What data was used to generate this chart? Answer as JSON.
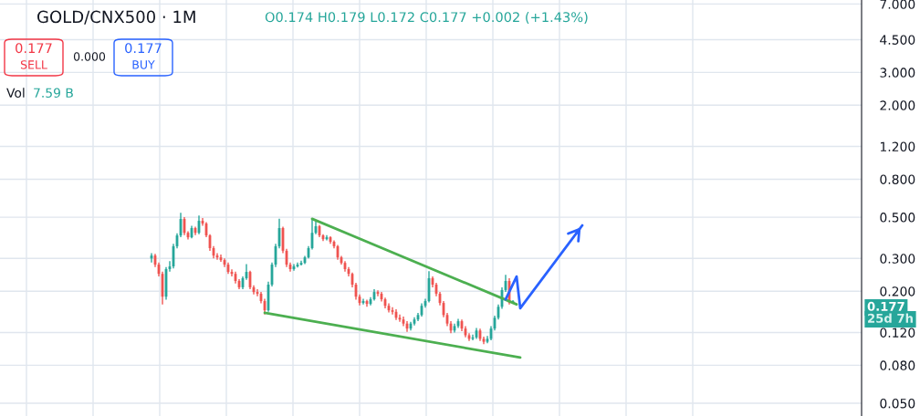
{
  "chart_data": {
    "type": "candlestick",
    "title": "GOLD/CNX500 · 1M",
    "categories": [
      null,
      null,
      null,
      null,
      null,
      null,
      null,
      null,
      null,
      null,
      null,
      null,
      null,
      null,
      null,
      null,
      null,
      null,
      null,
      null,
      null,
      null,
      null,
      null,
      null,
      null,
      null,
      null,
      null,
      null,
      null,
      null,
      null,
      null,
      null,
      null,
      null,
      null,
      null,
      null,
      null,
      null,
      null,
      null,
      null,
      null,
      null,
      null,
      null,
      null,
      null,
      null,
      null,
      null,
      null,
      null,
      null,
      null,
      null,
      null,
      null,
      null,
      null,
      null,
      null,
      null,
      null,
      null,
      null,
      null,
      null,
      null,
      null,
      null,
      null,
      null,
      null,
      null,
      null,
      null,
      null,
      null,
      null,
      null,
      null,
      null,
      null,
      null,
      null,
      null,
      null,
      null,
      null,
      null,
      null,
      null,
      null,
      null,
      null,
      null,
      null,
      null,
      null,
      null,
      null,
      null,
      null,
      null,
      null,
      null,
      null,
      null,
      null,
      null,
      null,
      null,
      null,
      null,
      null,
      null,
      null,
      null,
      null,
      null,
      null,
      null,
      null,
      null,
      null,
      null,
      null,
      null,
      null,
      null,
      null,
      null,
      null,
      null,
      null,
      null,
      null,
      null,
      null,
      null,
      null,
      null,
      null,
      null,
      null,
      null,
      null,
      null,
      null,
      null,
      null,
      null,
      null,
      null,
      null,
      null,
      null,
      null,
      null,
      null,
      null,
      null,
      null,
      null,
      null,
      null,
      null,
      null,
      null,
      null,
      null,
      null,
      null,
      null,
      null,
      null,
      null,
      null,
      null,
      null,
      null,
      null,
      null,
      null,
      null,
      null,
      null,
      null,
      null,
      null,
      null,
      null,
      null,
      null,
      null,
      null,
      null,
      null,
      null,
      null,
      null,
      null,
      null,
      null,
      null,
      null,
      null,
      null,
      null,
      null,
      null,
      null,
      null,
      null,
      null,
      null,
      null,
      null,
      null,
      null,
      null,
      null,
      null,
      null,
      null,
      null,
      null,
      null,
      null,
      null,
      null,
      null
    ],
    "ohlc": [
      null,
      null,
      null,
      null,
      null,
      null,
      null,
      null,
      null,
      null,
      null,
      null,
      null,
      null,
      null,
      null,
      null,
      null,
      null,
      null,
      null,
      null,
      null,
      null,
      null,
      null,
      null,
      null,
      null,
      null,
      null,
      null,
      null,
      null,
      null,
      null,
      null,
      null,
      null,
      null,
      null,
      [
        0.3,
        0.32,
        0.285,
        0.311
      ],
      [
        0.311,
        0.318,
        0.27,
        0.278
      ],
      [
        0.278,
        0.285,
        0.24,
        0.248
      ],
      [
        0.248,
        0.255,
        0.17,
        0.187
      ],
      [
        0.187,
        0.27,
        0.18,
        0.263
      ],
      [
        0.263,
        0.29,
        0.255,
        0.272
      ],
      [
        0.272,
        0.36,
        0.265,
        0.349
      ],
      [
        0.349,
        0.41,
        0.34,
        0.399
      ],
      [
        0.399,
        0.528,
        0.39,
        0.489
      ],
      [
        0.489,
        0.5,
        0.4,
        0.412
      ],
      [
        0.412,
        0.42,
        0.38,
        0.39
      ],
      [
        0.39,
        0.45,
        0.385,
        0.437
      ],
      [
        0.437,
        0.445,
        0.4,
        0.412
      ],
      [
        0.412,
        0.51,
        0.405,
        0.478
      ],
      [
        0.478,
        0.495,
        0.45,
        0.462
      ],
      [
        0.462,
        0.47,
        0.39,
        0.399
      ],
      [
        0.399,
        0.405,
        0.33,
        0.341
      ],
      [
        0.341,
        0.35,
        0.3,
        0.311
      ],
      [
        0.311,
        0.32,
        0.295,
        0.304
      ],
      [
        0.304,
        0.315,
        0.288,
        0.294
      ],
      [
        0.294,
        0.3,
        0.27,
        0.278
      ],
      [
        0.278,
        0.285,
        0.248,
        0.254
      ],
      [
        0.254,
        0.262,
        0.24,
        0.248
      ],
      [
        0.248,
        0.255,
        0.22,
        0.227
      ],
      [
        0.227,
        0.232,
        0.205,
        0.21
      ],
      [
        0.21,
        0.24,
        0.205,
        0.235
      ],
      [
        0.235,
        0.28,
        0.23,
        0.254
      ],
      [
        0.254,
        0.258,
        0.205,
        0.21
      ],
      [
        0.21,
        0.215,
        0.192,
        0.198
      ],
      [
        0.198,
        0.205,
        0.188,
        0.194
      ],
      [
        0.194,
        0.198,
        0.172,
        0.177
      ],
      [
        0.177,
        0.182,
        0.15,
        0.158
      ],
      [
        0.158,
        0.225,
        0.155,
        0.217
      ],
      [
        0.217,
        0.285,
        0.212,
        0.278
      ],
      [
        0.278,
        0.36,
        0.27,
        0.349
      ],
      [
        0.349,
        0.49,
        0.34,
        0.437
      ],
      [
        0.437,
        0.445,
        0.32,
        0.33
      ],
      [
        0.33,
        0.338,
        0.27,
        0.278
      ],
      [
        0.278,
        0.285,
        0.255,
        0.263
      ],
      [
        0.263,
        0.28,
        0.258,
        0.272
      ],
      [
        0.272,
        0.285,
        0.268,
        0.278
      ],
      [
        0.278,
        0.292,
        0.275,
        0.284
      ],
      [
        0.284,
        0.31,
        0.28,
        0.304
      ],
      [
        0.304,
        0.35,
        0.3,
        0.341
      ],
      [
        0.341,
        0.489,
        0.335,
        0.412
      ],
      [
        0.412,
        0.475,
        0.405,
        0.447
      ],
      [
        0.447,
        0.455,
        0.39,
        0.399
      ],
      [
        0.399,
        0.405,
        0.372,
        0.381
      ],
      [
        0.381,
        0.4,
        0.375,
        0.39
      ],
      [
        0.39,
        0.395,
        0.36,
        0.369
      ],
      [
        0.369,
        0.375,
        0.34,
        0.349
      ],
      [
        0.349,
        0.355,
        0.295,
        0.304
      ],
      [
        0.304,
        0.31,
        0.278,
        0.284
      ],
      [
        0.284,
        0.29,
        0.255,
        0.263
      ],
      [
        0.263,
        0.27,
        0.24,
        0.248
      ],
      [
        0.248,
        0.252,
        0.21,
        0.217
      ],
      [
        0.217,
        0.222,
        0.18,
        0.187
      ],
      [
        0.187,
        0.192,
        0.168,
        0.173
      ],
      [
        0.173,
        0.182,
        0.17,
        0.177
      ],
      [
        0.177,
        0.18,
        0.165,
        0.171
      ],
      [
        0.171,
        0.186,
        0.168,
        0.181
      ],
      [
        0.181,
        0.205,
        0.178,
        0.198
      ],
      [
        0.198,
        0.202,
        0.188,
        0.194
      ],
      [
        0.194,
        0.198,
        0.176,
        0.181
      ],
      [
        0.181,
        0.185,
        0.162,
        0.167
      ],
      [
        0.167,
        0.172,
        0.154,
        0.158
      ],
      [
        0.158,
        0.164,
        0.15,
        0.155
      ],
      [
        0.155,
        0.16,
        0.14,
        0.144
      ],
      [
        0.144,
        0.15,
        0.137,
        0.141
      ],
      [
        0.141,
        0.146,
        0.13,
        0.134
      ],
      [
        0.134,
        0.138,
        0.121,
        0.126
      ],
      [
        0.126,
        0.137,
        0.123,
        0.134
      ],
      [
        0.134,
        0.145,
        0.131,
        0.141
      ],
      [
        0.141,
        0.153,
        0.138,
        0.149
      ],
      [
        0.149,
        0.172,
        0.146,
        0.167
      ],
      [
        0.167,
        0.182,
        0.163,
        0.177
      ],
      [
        0.177,
        0.256,
        0.174,
        0.235
      ],
      [
        0.235,
        0.24,
        0.21,
        0.217
      ],
      [
        0.217,
        0.222,
        0.188,
        0.194
      ],
      [
        0.194,
        0.198,
        0.168,
        0.173
      ],
      [
        0.173,
        0.177,
        0.145,
        0.149
      ],
      [
        0.149,
        0.153,
        0.13,
        0.134
      ],
      [
        0.134,
        0.138,
        0.119,
        0.123
      ],
      [
        0.123,
        0.134,
        0.12,
        0.13
      ],
      [
        0.13,
        0.142,
        0.127,
        0.138
      ],
      [
        0.138,
        0.141,
        0.122,
        0.126
      ],
      [
        0.126,
        0.13,
        0.113,
        0.116
      ],
      [
        0.116,
        0.119,
        0.108,
        0.111
      ],
      [
        0.111,
        0.117,
        0.109,
        0.113
      ],
      [
        0.113,
        0.127,
        0.111,
        0.123
      ],
      [
        0.123,
        0.126,
        0.108,
        0.111
      ],
      [
        0.111,
        0.114,
        0.104,
        0.107
      ],
      [
        0.107,
        0.115,
        0.105,
        0.111
      ],
      [
        0.111,
        0.13,
        0.109,
        0.126
      ],
      [
        0.126,
        0.148,
        0.123,
        0.144
      ],
      [
        0.144,
        0.17,
        0.141,
        0.165
      ],
      [
        0.165,
        0.21,
        0.161,
        0.203
      ],
      [
        0.203,
        0.245,
        0.198,
        0.227
      ],
      [
        0.227,
        0.235,
        0.17,
        0.174
      ],
      [
        0.174,
        0.179,
        0.172,
        0.177
      ],
      null,
      null,
      null,
      null,
      null,
      null,
      null,
      null,
      null,
      null,
      null,
      null,
      null,
      null,
      null,
      null,
      null,
      null,
      null,
      null,
      null,
      null,
      null,
      null,
      null,
      null,
      null,
      null,
      null,
      null,
      null,
      null,
      null,
      null,
      null,
      null,
      null,
      null,
      null,
      null,
      null,
      null,
      null,
      null,
      null,
      null,
      null,
      null,
      null,
      null,
      null,
      null,
      null,
      null,
      null,
      null,
      null,
      null,
      null,
      null,
      null,
      null,
      null,
      null,
      null,
      null,
      null,
      null,
      null,
      null,
      null,
      null,
      null,
      null,
      null,
      null,
      null,
      null,
      null,
      null,
      null,
      null,
      null,
      null,
      null,
      null,
      null,
      null,
      null,
      null,
      null,
      null,
      null,
      null,
      null
    ],
    "series": [
      {
        "type": "line",
        "color": "#4caf50",
        "values": [
          null,
          null,
          null,
          null,
          null,
          null,
          null,
          null,
          null,
          null,
          null,
          null,
          null,
          null,
          null,
          null,
          null,
          null,
          null,
          null,
          null,
          null,
          null,
          null,
          null,
          null,
          null,
          null,
          null,
          null,
          null,
          null,
          null,
          null,
          null,
          null,
          null,
          null,
          null,
          null,
          null,
          null,
          null,
          null,
          null,
          null,
          null,
          null,
          null,
          null,
          null,
          null,
          null,
          null,
          null,
          null,
          null,
          null,
          null,
          null,
          null,
          null,
          null,
          null,
          null,
          null,
          null,
          null,
          null,
          null,
          null,
          null,
          null,
          null,
          null,
          null,
          null,
          null,
          null,
          null,
          null,
          null,
          null,
          null,
          null,
          0.49,
          null,
          null,
          null,
          null,
          null,
          null,
          null,
          null,
          null,
          null,
          null,
          null,
          null,
          null,
          null,
          null,
          null,
          null,
          null,
          null,
          null,
          null,
          null,
          null,
          null,
          null,
          null,
          null,
          null,
          null,
          null,
          null,
          null,
          null,
          null,
          null,
          null,
          null,
          null,
          null,
          null,
          null,
          null,
          null,
          null,
          null,
          null,
          null,
          null,
          null,
          null,
          null,
          null,
          null,
          null,
          0.17,
          null,
          null,
          null,
          null,
          null,
          null,
          null,
          null,
          null,
          null,
          null,
          null,
          null,
          null,
          null,
          null,
          null,
          null,
          null,
          null,
          null,
          null,
          null,
          null,
          null,
          null,
          null,
          null,
          null,
          null,
          null,
          null,
          null,
          null,
          null,
          null,
          null,
          null,
          null,
          null,
          null,
          null,
          null,
          null,
          null,
          null,
          null,
          null,
          null,
          null,
          null,
          null,
          null,
          null,
          null,
          null,
          null,
          null,
          null,
          null,
          null,
          null,
          null,
          null,
          null,
          null,
          null,
          null,
          null,
          null,
          null,
          null,
          null,
          null,
          null,
          null,
          null,
          null,
          null,
          null,
          null,
          null,
          null,
          null,
          null,
          null,
          null,
          null,
          null,
          null,
          null,
          null,
          null,
          null
        ]
      },
      {
        "type": "line",
        "color": "#4caf50",
        "values": [
          null,
          null,
          null,
          null,
          null,
          null,
          null,
          null,
          null,
          null,
          null,
          null,
          null,
          null,
          null,
          null,
          null,
          null,
          null,
          null,
          null,
          null,
          null,
          null,
          null,
          null,
          null,
          null,
          null,
          null,
          null,
          null,
          null,
          null,
          null,
          null,
          null,
          null,
          null,
          null,
          null,
          null,
          null,
          null,
          null,
          null,
          null,
          null,
          null,
          null,
          null,
          null,
          null,
          null,
          null,
          null,
          null,
          null,
          null,
          null,
          null,
          null,
          null,
          null,
          null,
          null,
          null,
          null,
          null,
          null,
          null,
          null,
          0.153,
          null,
          null,
          null,
          null,
          null,
          null,
          null,
          null,
          null,
          null,
          null,
          null,
          null,
          null,
          null,
          null,
          null,
          null,
          null,
          null,
          null,
          null,
          null,
          null,
          null,
          null,
          null,
          null,
          null,
          null,
          null,
          null,
          null,
          null,
          null,
          null,
          null,
          null,
          null,
          null,
          null,
          null,
          null,
          null,
          null,
          null,
          null,
          null,
          null,
          null,
          null,
          null,
          null,
          null,
          null,
          null,
          null,
          null,
          null,
          null,
          null,
          null,
          null,
          null,
          null,
          null,
          null,
          null,
          null,
          0.088,
          null,
          null,
          null,
          null,
          null,
          null,
          null,
          null,
          null,
          null,
          null,
          null,
          null,
          null,
          null,
          null,
          null,
          null,
          null,
          null,
          null,
          null,
          null,
          null,
          null,
          null,
          null,
          null,
          null,
          null,
          null,
          null,
          null,
          null,
          null,
          null,
          null,
          null,
          null,
          null,
          null,
          null,
          null,
          null,
          null,
          null,
          null,
          null,
          null,
          null,
          null,
          null,
          null,
          null,
          null,
          null,
          null,
          null,
          null,
          null,
          null,
          null,
          null,
          null,
          null,
          null,
          null,
          null,
          null,
          null,
          null,
          null,
          null,
          null,
          null,
          null,
          null,
          null,
          null,
          null,
          null,
          null,
          null,
          null,
          null,
          null,
          null,
          null,
          null,
          null,
          null,
          null,
          null
        ]
      },
      {
        "type": "line",
        "color": "#2962ff",
        "values": [
          null,
          null,
          null,
          null,
          null,
          null,
          null,
          null,
          null,
          null,
          null,
          null,
          null,
          null,
          null,
          null,
          null,
          null,
          null,
          null,
          null,
          null,
          null,
          null,
          null,
          null,
          null,
          null,
          null,
          null,
          null,
          null,
          null,
          null,
          null,
          null,
          null,
          null,
          null,
          null,
          null,
          null,
          null,
          null,
          null,
          null,
          null,
          null,
          null,
          null,
          null,
          null,
          null,
          null,
          null,
          null,
          null,
          null,
          null,
          null,
          null,
          null,
          null,
          null,
          null,
          null,
          null,
          null,
          null,
          null,
          null,
          null,
          null,
          null,
          null,
          null,
          null,
          null,
          null,
          null,
          null,
          null,
          null,
          null,
          null,
          null,
          null,
          null,
          null,
          null,
          null,
          null,
          null,
          null,
          null,
          null,
          null,
          null,
          null,
          null,
          null,
          null,
          null,
          null,
          null,
          null,
          null,
          null,
          null,
          null,
          null,
          null,
          null,
          null,
          null,
          null,
          null,
          null,
          null,
          null,
          null,
          null,
          null,
          null,
          null,
          null,
          null,
          null,
          null,
          null,
          null,
          null,
          null,
          null,
          null,
          null,
          null,
          null,
          0.181,
          null,
          null,
          0.24,
          0.162,
          null,
          null,
          null,
          null,
          null,
          null,
          null,
          null,
          null,
          null,
          null,
          null,
          null,
          null,
          null,
          null,
          0.452,
          null,
          null,
          null,
          null,
          null,
          null,
          null,
          null,
          null,
          null,
          null,
          null,
          null,
          null,
          null,
          null,
          null,
          null,
          null,
          null,
          null,
          null,
          null,
          null,
          null,
          null,
          null,
          null,
          null,
          null,
          null,
          null,
          null,
          null,
          null,
          null,
          null,
          null,
          null,
          null,
          null,
          null,
          null,
          null,
          null,
          null,
          null,
          null,
          null,
          null,
          null,
          null,
          null,
          null,
          null,
          null,
          null,
          null,
          null,
          null,
          null,
          null,
          null,
          null,
          null,
          null,
          null,
          null,
          null,
          null,
          null,
          null,
          null,
          null,
          null,
          null
        ]
      }
    ],
    "log": "y",
    "ylim": [
      0.0427,
      7.35
    ],
    "yticks": [
      {
        "value": 0.05,
        "label": "0.050"
      },
      {
        "value": 0.08,
        "label": "0.080"
      },
      {
        "value": 0.12,
        "label": "0.120"
      },
      {
        "value": 0.2,
        "label": "0.200"
      },
      {
        "value": 0.3,
        "label": "0.300"
      },
      {
        "value": 0.5,
        "label": "0.500"
      },
      {
        "value": 0.8,
        "label": "0.800"
      },
      {
        "value": 1.2,
        "label": "1.200"
      },
      {
        "value": 2,
        "label": "2.000"
      },
      {
        "value": 3,
        "label": "3.000"
      },
      {
        "value": 4.5,
        "label": "4.500"
      },
      {
        "value": 7,
        "label": "7.000"
      }
    ],
    "tick_labels": "y",
    "grid": true,
    "annotations": [
      "O0.174 H0.179 L0.172 C0.177 +0.002 (+1.43%)",
      "0.177",
      "SELL",
      "0.000",
      "0.177",
      "BUY",
      "Vol",
      "7.59 B",
      "0.177",
      "25d 7h"
    ]
  }
}
